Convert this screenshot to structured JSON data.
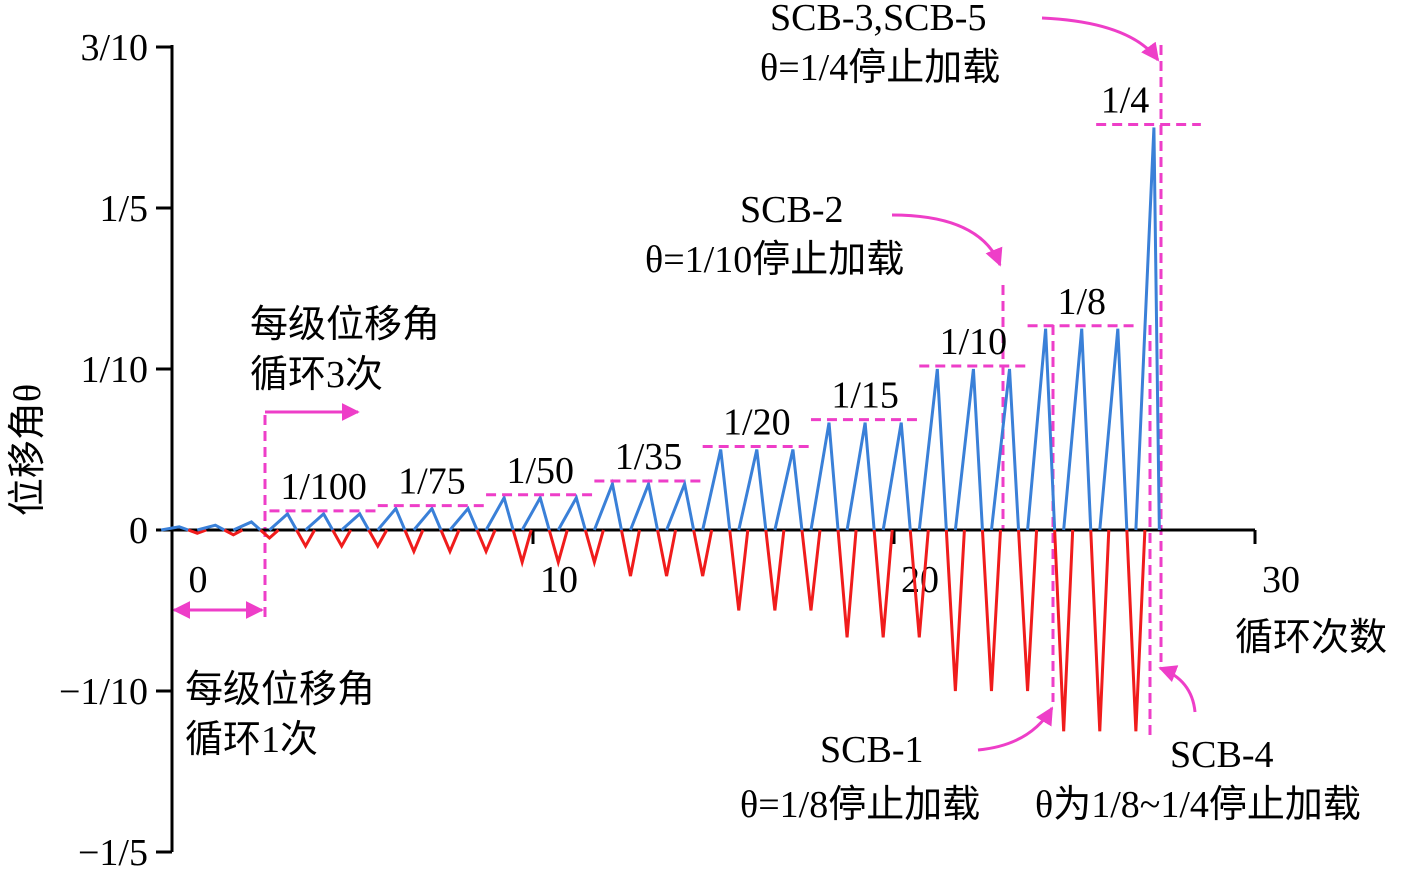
{
  "chart_data": {
    "type": "loading-protocol",
    "x_label": "循环次数",
    "y_label": "位移角θ",
    "xlim": [
      0,
      30
    ],
    "xticks": [
      0,
      10,
      20,
      30
    ],
    "ylim": [
      -0.2,
      0.3
    ],
    "yticks": [
      {
        "value": -0.2,
        "label": "−1/5"
      },
      {
        "value": -0.1,
        "label": "−1/10"
      },
      0,
      {
        "value": 0.1,
        "label": "1/10"
      },
      {
        "value": 0.2,
        "label": "1/5"
      },
      {
        "value": 0.3,
        "label": "3/10"
      }
    ],
    "x": [
      0,
      1,
      2,
      3,
      4,
      5,
      6,
      7,
      8,
      9,
      10,
      11,
      12,
      13,
      14,
      15,
      16,
      17,
      18,
      19,
      20,
      21,
      22,
      23,
      24,
      25,
      26,
      27
    ],
    "series": [
      {
        "color": "#3a80d8",
        "values": [
          0.002,
          0.003,
          0.005,
          0.01,
          0.01,
          0.01,
          0.0133,
          0.0133,
          0.0133,
          0.02,
          0.02,
          0.02,
          0.0286,
          0.0286,
          0.0286,
          0.05,
          0.05,
          0.05,
          0.0667,
          0.0667,
          0.0667,
          0.1,
          0.1,
          0.1,
          0.125,
          0.125,
          0.125,
          0.25
        ]
      },
      {
        "color": "#f01c1c",
        "values": [
          -0.002,
          -0.003,
          -0.005,
          -0.01,
          -0.01,
          -0.01,
          -0.0133,
          -0.0133,
          -0.0133,
          -0.02,
          -0.02,
          -0.02,
          -0.0286,
          -0.0286,
          -0.0286,
          -0.05,
          -0.05,
          -0.05,
          -0.0667,
          -0.0667,
          -0.0667,
          -0.1,
          -0.1,
          -0.1,
          -0.125,
          -0.125,
          -0.125,
          null
        ]
      }
    ],
    "levels": [
      {
        "label": "1/100",
        "value": 0.01
      },
      {
        "label": "1/75",
        "value": 0.0133
      },
      {
        "label": "1/50",
        "value": 0.02
      },
      {
        "label": "1/35",
        "value": 0.0286
      },
      {
        "label": "1/20",
        "value": 0.05
      },
      {
        "label": "1/15",
        "value": 0.0667
      },
      {
        "label": "1/10",
        "value": 0.1
      },
      {
        "label": "1/8",
        "value": 0.125
      },
      {
        "label": "1/4",
        "value": 0.25
      }
    ],
    "annotations": [
      "每级位移角",
      "循环3次",
      "每级位移角",
      "循环1次",
      "SCB-3,SCB-5",
      "θ=1/4停止加载",
      "SCB-2",
      "θ=1/10停止加载",
      "SCB-1",
      "θ=1/8停止加载",
      "SCB-4",
      "θ为1/8~1/4停止加载"
    ]
  }
}
